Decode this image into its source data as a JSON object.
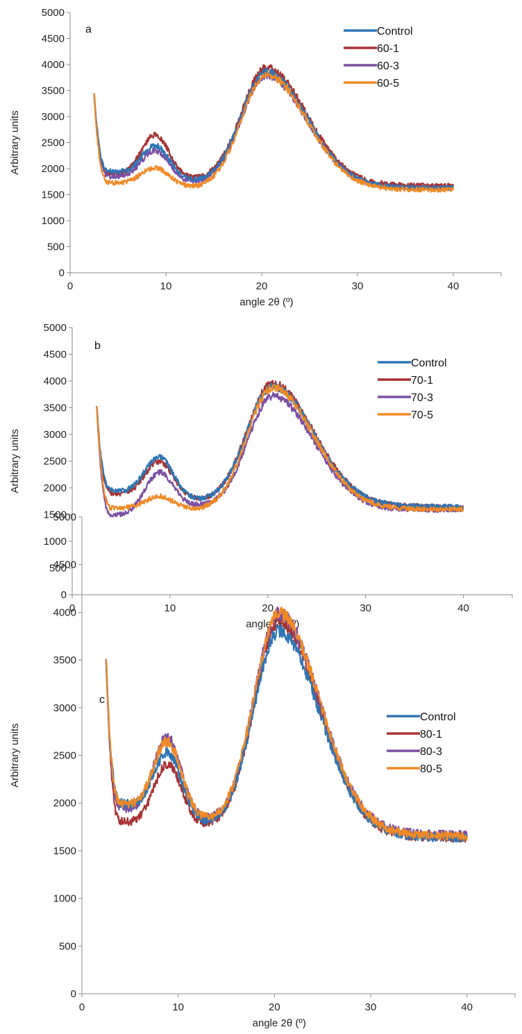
{
  "colors": {
    "Control": "#2e75b6",
    "series1": "#a83232",
    "series3": "#7b4fa3",
    "series5": "#ef8a26"
  },
  "chart_data": [
    {
      "type": "line",
      "panel": "a",
      "xlabel": "angle 2θ (º)",
      "ylabel": "Arbitrary units",
      "xlim": [
        0,
        45
      ],
      "ylim": [
        0,
        5000
      ],
      "xticks": [
        0,
        10,
        20,
        30,
        40
      ],
      "yticks": [
        0,
        500,
        1000,
        1500,
        2000,
        2500,
        3000,
        3500,
        4000,
        4500,
        5000
      ],
      "grid": false,
      "legend": "top-right",
      "series": [
        {
          "name": "Control",
          "peak1": 2550,
          "peak2": 4150,
          "start": 3450,
          "min1": 1950,
          "min2": 1880,
          "end": 1600
        },
        {
          "name": "60-1",
          "peak1": 2720,
          "peak2": 4250,
          "start": 3450,
          "min1": 1900,
          "min2": 1920,
          "end": 1650
        },
        {
          "name": "60-3",
          "peak1": 2420,
          "peak2": 4050,
          "start": 3450,
          "min1": 1850,
          "min2": 1820,
          "end": 1600
        },
        {
          "name": "60-5",
          "peak1": 2070,
          "peak2": 3950,
          "start": 3450,
          "min1": 1730,
          "min2": 1650,
          "end": 1580
        }
      ]
    },
    {
      "type": "line",
      "panel": "b",
      "xlabel": "angle 2θ (º)",
      "ylabel": "Arbitrary units",
      "xlim": [
        0,
        45
      ],
      "ylim": [
        0,
        5000
      ],
      "xticks": [
        0,
        10,
        20,
        30,
        40
      ],
      "yticks": [
        0,
        500,
        1000,
        1500,
        2000,
        2500,
        3000,
        3500,
        4000,
        4500,
        5000
      ],
      "grid": false,
      "legend": "top-right",
      "series": [
        {
          "name": "Control",
          "peak1": 2680,
          "peak2": 4150,
          "start": 3550,
          "min1": 1950,
          "min2": 1850,
          "end": 1620
        },
        {
          "name": "70-1",
          "peak1": 2580,
          "peak2": 4250,
          "start": 3550,
          "min1": 1900,
          "min2": 1880,
          "end": 1620
        },
        {
          "name": "70-3",
          "peak1": 2230,
          "peak2": 4050,
          "start": 3550,
          "min1": 1480,
          "min2": 1780,
          "end": 1600
        },
        {
          "name": "70-5",
          "peak1": 1850,
          "peak2": 3950,
          "start": 3550,
          "min1": 1620,
          "min2": 1560,
          "end": 1600
        }
      ]
    },
    {
      "type": "line",
      "panel": "c",
      "xlabel": "angle 2θ (º)",
      "ylabel": "Arbitrary units",
      "xlim": [
        0,
        45
      ],
      "ylim": [
        0,
        5000
      ],
      "xticks": [
        0,
        10,
        20,
        30,
        40
      ],
      "yticks": [
        0,
        500,
        1000,
        1500,
        2000,
        2500,
        3000,
        3500,
        4000,
        4500,
        5000
      ],
      "grid": false,
      "legend": "top-right",
      "series": [
        {
          "name": "Control",
          "peak1": 2650,
          "peak2": 4100,
          "start": 3550,
          "min1": 2000,
          "min2": 1900,
          "end": 1600
        },
        {
          "name": "80-1",
          "peak1": 2450,
          "peak2": 4250,
          "start": 3550,
          "min1": 1800,
          "min2": 1900,
          "end": 1620
        },
        {
          "name": "80-3",
          "peak1": 2780,
          "peak2": 4300,
          "start": 3550,
          "min1": 1950,
          "min2": 1930,
          "end": 1640
        },
        {
          "name": "80-5",
          "peak1": 2760,
          "peak2": 4320,
          "start": 3550,
          "min1": 2000,
          "min2": 1950,
          "end": 1620
        }
      ]
    }
  ]
}
